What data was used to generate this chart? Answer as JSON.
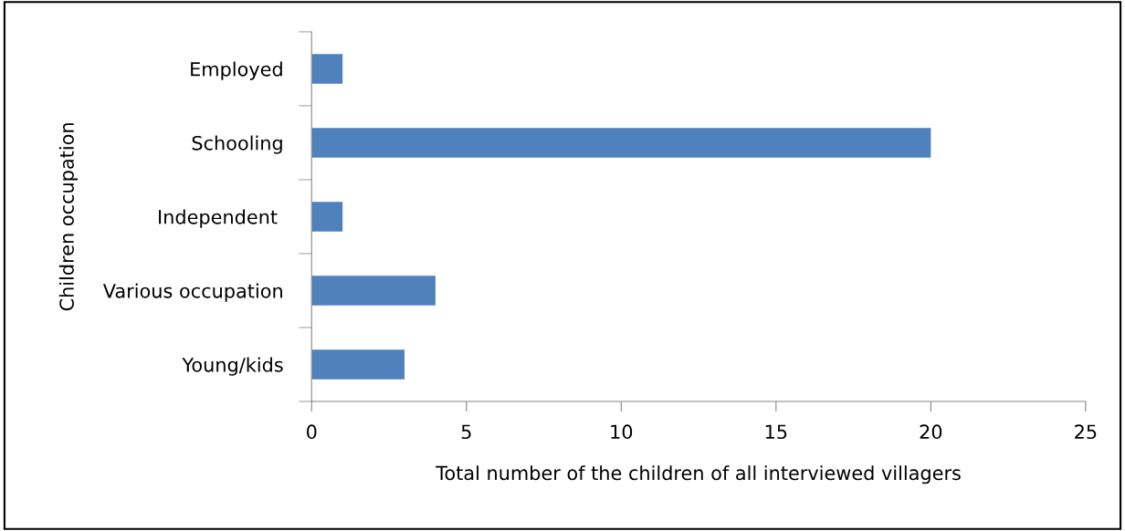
{
  "chart_data": {
    "type": "bar",
    "orientation": "horizontal",
    "categories": [
      "Employed",
      "Schooling",
      "Independent ",
      "Various occupation",
      "Young/kids"
    ],
    "values": [
      1,
      20,
      1,
      4,
      3
    ],
    "color": "#4f81bd",
    "xlim": [
      0,
      25
    ],
    "xticks": [
      0,
      5,
      10,
      15,
      20,
      25
    ],
    "xlabel": "Total number of the children of all interviewed villagers",
    "ylabel": "Children occupation",
    "grid": false,
    "legend": false
  }
}
